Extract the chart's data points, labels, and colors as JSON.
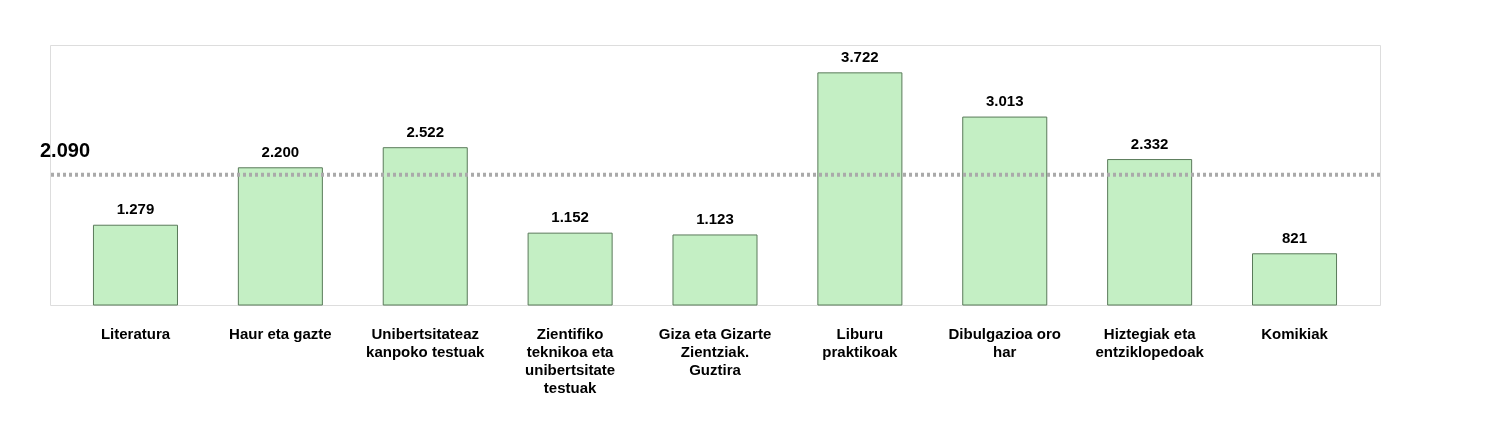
{
  "chart_data": {
    "type": "bar",
    "categories": [
      "Literatura",
      "Haur eta gazte",
      "Unibertsitateaz kanpoko testuak",
      "Zientifiko teknikoa eta unibertsitate testuak",
      "Giza eta Gizarte Zientziak. Guztira",
      "Liburu praktikoak",
      "Dibulgazioa oro har",
      "Hiztegiak eta entziklopedoak",
      "Komikiak"
    ],
    "values": [
      1279,
      2200,
      2522,
      1152,
      1123,
      3722,
      3013,
      2332,
      821
    ],
    "value_labels": [
      "1.279",
      "2.200",
      "2.522",
      "1.152",
      "1.123",
      "3.722",
      "3.013",
      "2.332",
      "821"
    ],
    "color": "#c4efc4",
    "ref_lines": [
      {
        "axis": "y",
        "value": 2090,
        "label": "2.090",
        "color": "#aaaaaa",
        "line_style": "dotted"
      }
    ]
  }
}
